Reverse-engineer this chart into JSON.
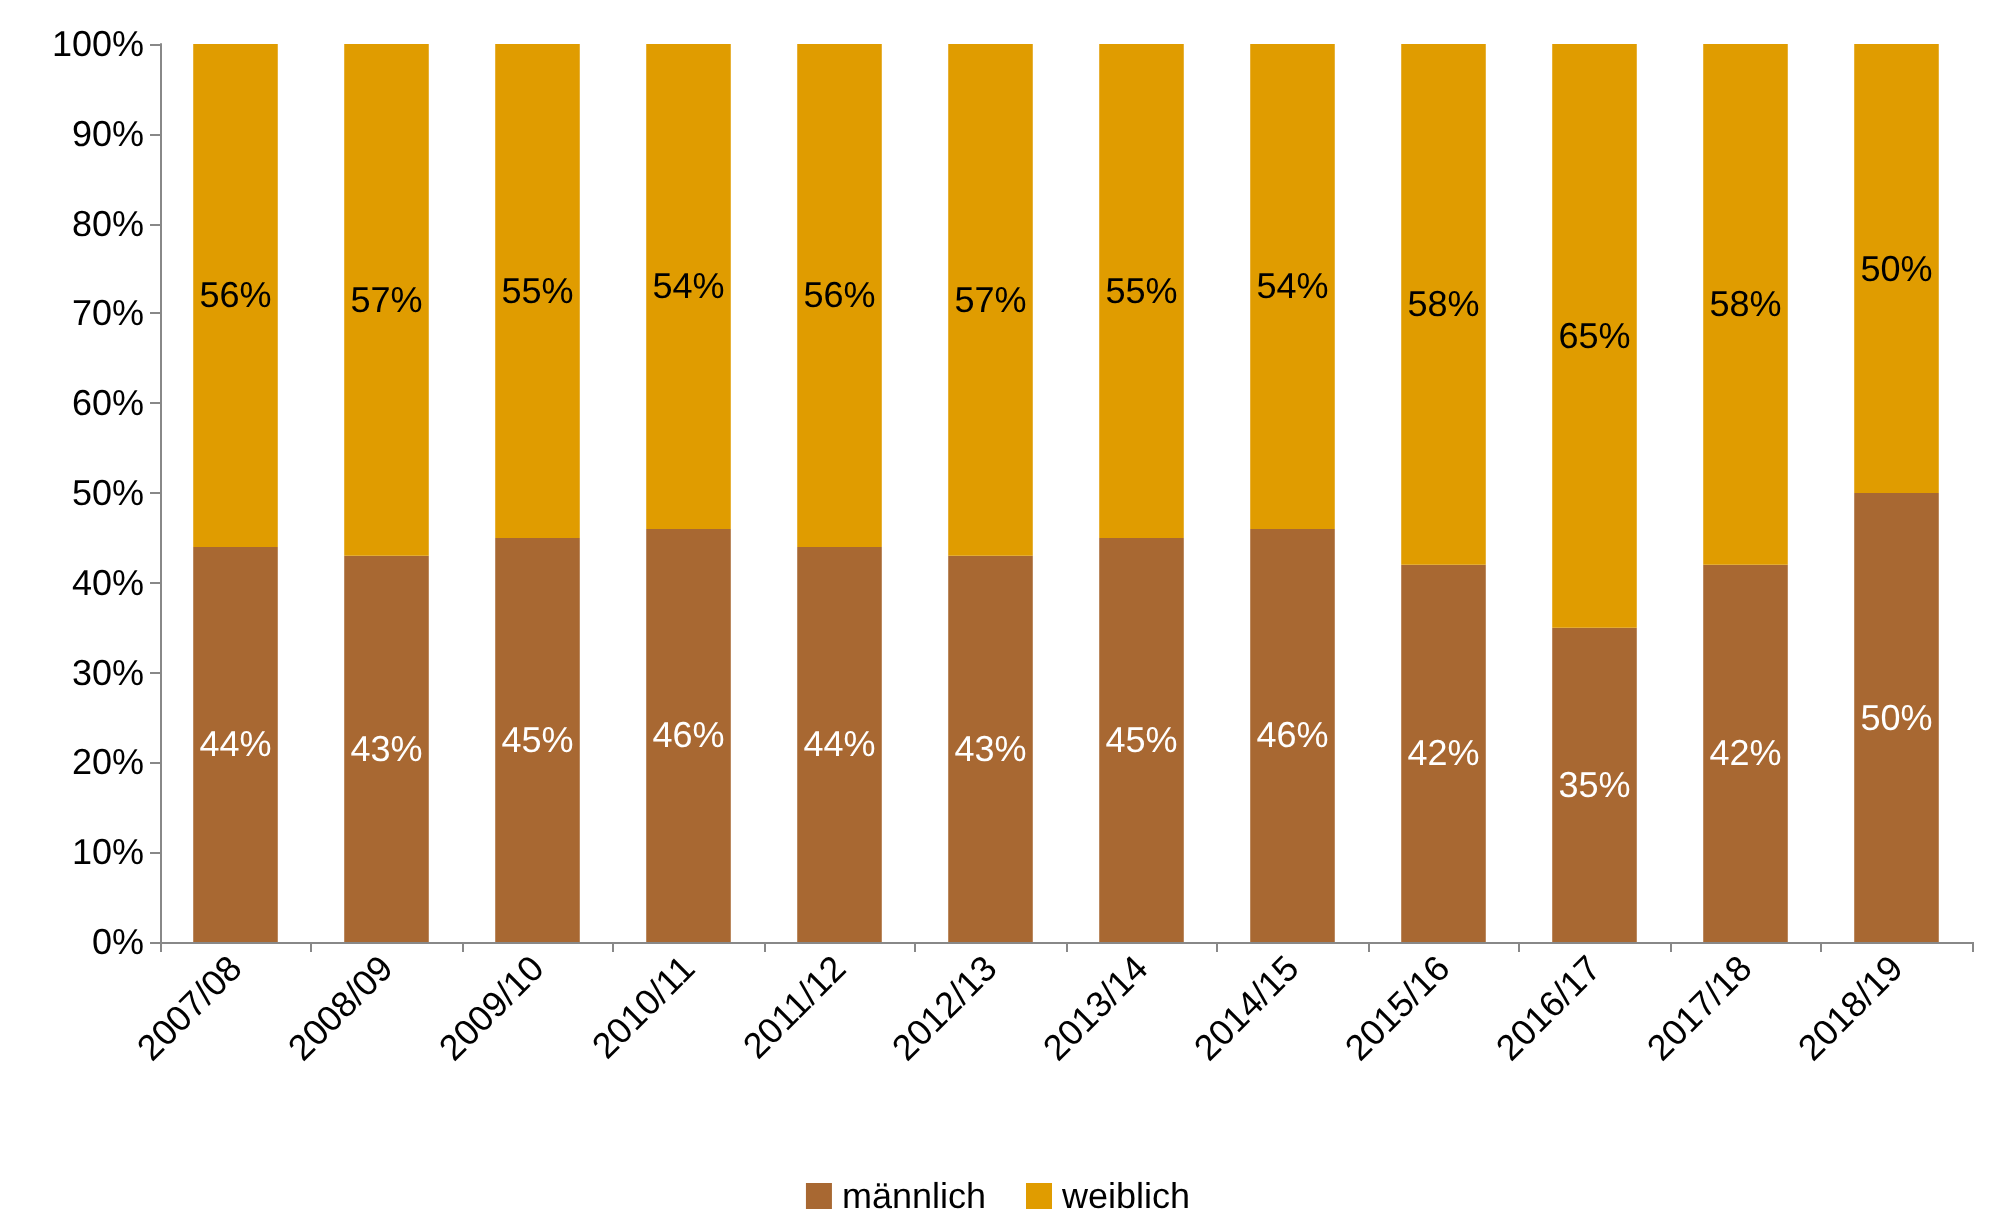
{
  "chart_data": {
    "type": "bar",
    "stacked": true,
    "categories": [
      "2007/08",
      "2008/09",
      "2009/10",
      "2010/11",
      "2011/12",
      "2012/13",
      "2013/14",
      "2014/15",
      "2015/16",
      "2016/17",
      "2017/18",
      "2018/19"
    ],
    "series": [
      {
        "name": "männlich",
        "color": "#a86832",
        "values": [
          44,
          43,
          45,
          46,
          44,
          43,
          45,
          46,
          42,
          35,
          42,
          50
        ],
        "value_labels": [
          "44%",
          "43%",
          "45%",
          "46%",
          "44%",
          "43%",
          "45%",
          "46%",
          "42%",
          "35%",
          "42%",
          "50%"
        ]
      },
      {
        "name": "weiblich",
        "color": "#e09c00",
        "values": [
          56,
          57,
          55,
          54,
          56,
          57,
          55,
          54,
          58,
          65,
          58,
          50
        ],
        "value_labels": [
          "56%",
          "57%",
          "55%",
          "54%",
          "56%",
          "57%",
          "55%",
          "54%",
          "58%",
          "65%",
          "58%",
          "50%"
        ]
      }
    ],
    "ylim": [
      0,
      100
    ],
    "yticks": [
      {
        "value": 0,
        "label": "0%"
      },
      {
        "value": 10,
        "label": "10%"
      },
      {
        "value": 20,
        "label": "20%"
      },
      {
        "value": 30,
        "label": "30%"
      },
      {
        "value": 40,
        "label": "40%"
      },
      {
        "value": 50,
        "label": "50%"
      },
      {
        "value": 60,
        "label": "60%"
      },
      {
        "value": 70,
        "label": "70%"
      },
      {
        "value": 80,
        "label": "80%"
      },
      {
        "value": 90,
        "label": "90%"
      },
      {
        "value": 100,
        "label": "100%"
      }
    ],
    "grid": false,
    "legend": "bottom"
  }
}
